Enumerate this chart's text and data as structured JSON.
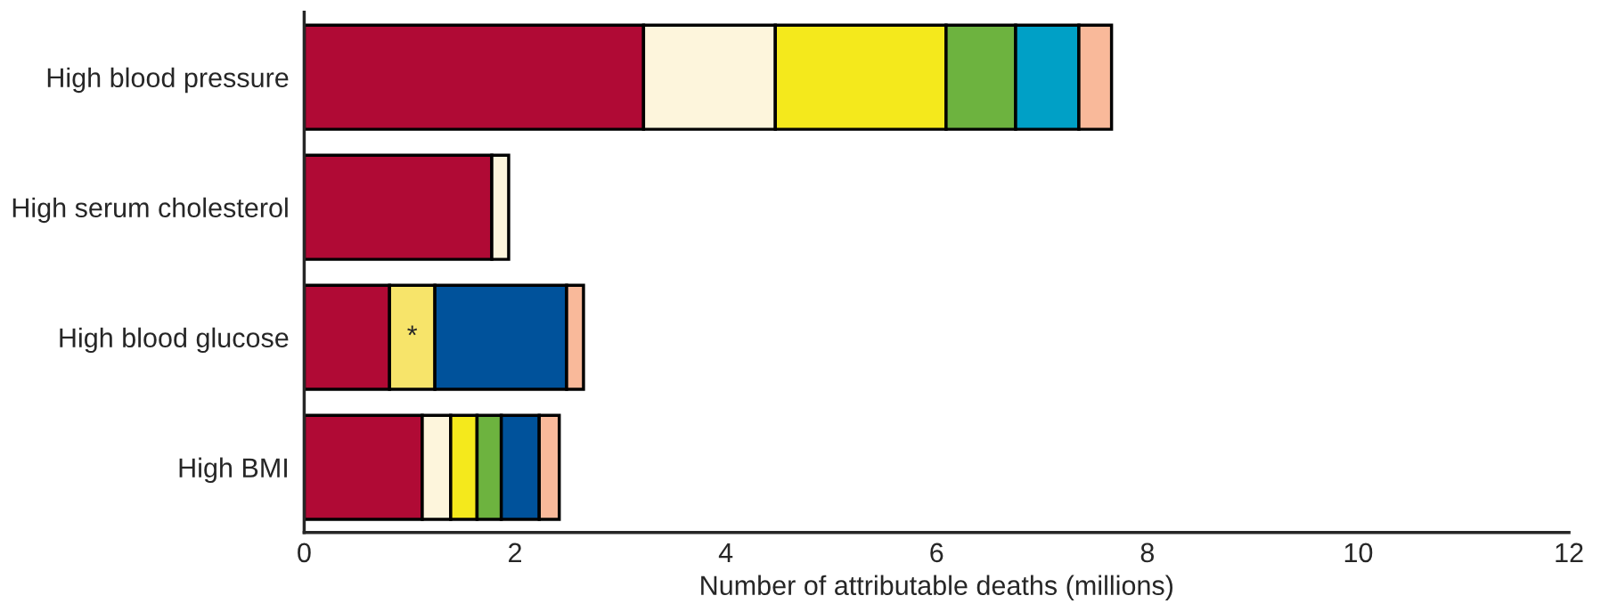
{
  "chart_data": {
    "type": "bar",
    "orientation": "horizontal",
    "stacked": true,
    "categories": [
      "High blood pressure",
      "High serum cholesterol",
      "High blood glucose",
      "High BMI"
    ],
    "series": [
      {
        "color": "#b00a35",
        "values": [
          3.22,
          1.78,
          0.81,
          1.12
        ]
      },
      {
        "color": "#fdf5dc",
        "values": [
          1.25,
          0.16,
          null,
          0.27
        ]
      },
      {
        "color": "#f7e46a",
        "values": [
          null,
          null,
          0.43,
          null
        ]
      },
      {
        "color": "#f4e91c",
        "values": [
          1.62,
          null,
          null,
          0.25
        ]
      },
      {
        "color": "#6db33f",
        "values": [
          0.66,
          null,
          null,
          0.23
        ]
      },
      {
        "color": "#00a0c6",
        "values": [
          0.6,
          null,
          null,
          null
        ]
      },
      {
        "color": "#00529b",
        "values": [
          null,
          null,
          1.25,
          0.36
        ]
      },
      {
        "color": "#f9b99a",
        "values": [
          0.31,
          null,
          0.16,
          0.19
        ]
      }
    ],
    "xlim": [
      0,
      12
    ],
    "xticks": [
      0,
      2,
      4,
      6,
      8,
      10,
      12
    ],
    "xlabel": "Number of attributable deaths (millions)",
    "annotations": [
      "*"
    ],
    "grid": false,
    "legend": false
  }
}
